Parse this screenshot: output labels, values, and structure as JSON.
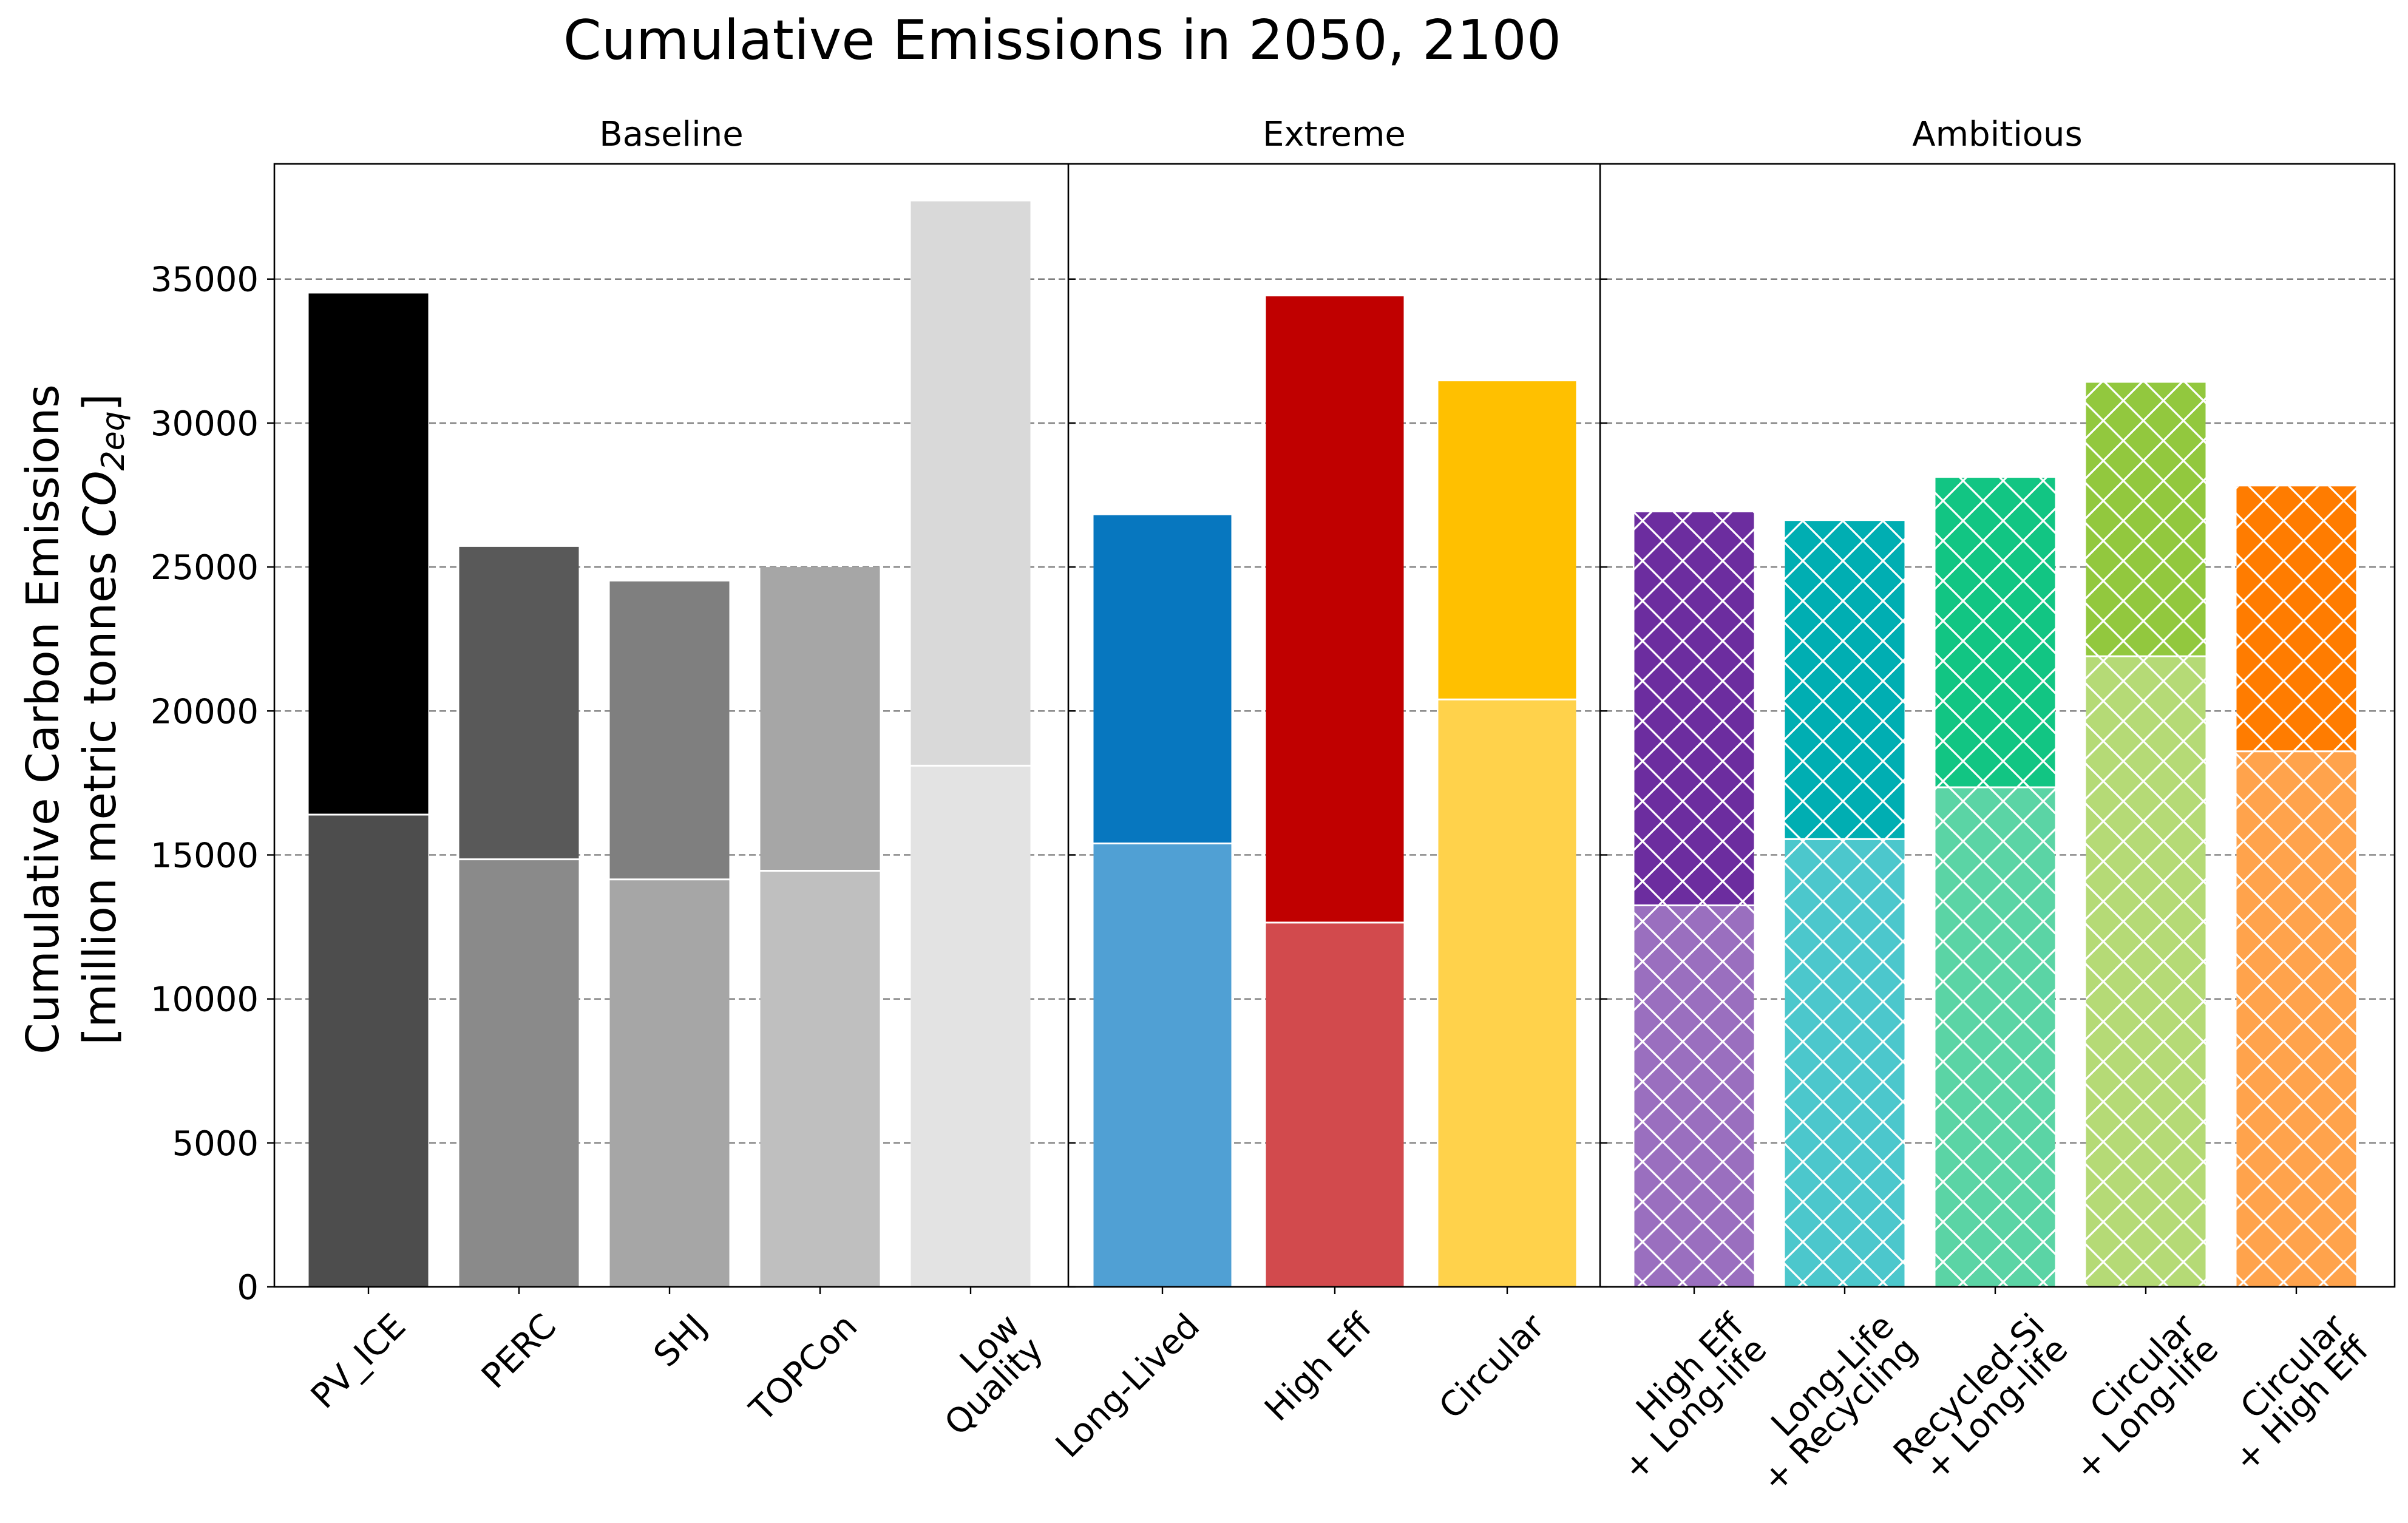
{
  "chart_data": {
    "type": "bar",
    "stacked": true,
    "title": "Cumulative Emissions in 2050, 2100",
    "ylabel_line1": "Cumulative Carbon Emissions",
    "ylabel_line2_prefix": "[million metric tonnes ",
    "ylabel_line2_symbol": "CO",
    "ylabel_line2_subscript": "2eq",
    "ylabel_line2_suffix": "]",
    "ylim": [
      0,
      39000
    ],
    "yticks": [
      0,
      5000,
      10000,
      15000,
      20000,
      25000,
      30000,
      35000
    ],
    "ytick_labels": [
      "0",
      "5000",
      "10000",
      "15000",
      "20000",
      "25000",
      "30000",
      "35000"
    ],
    "grid": "horizontal dashed",
    "stack_layers": [
      "2050",
      "2100"
    ],
    "panels": [
      {
        "name": "Baseline",
        "categories": [
          {
            "label": [
              "PV_ICE"
            ],
            "value_2050": 16400,
            "value_2100": 34500,
            "color_2050": "#4d4d4d",
            "color_2100": "#000000",
            "hatch": false
          },
          {
            "label": [
              "PERC"
            ],
            "value_2050": 14850,
            "value_2100": 25700,
            "color_2050": "#8a8a8a",
            "color_2100": "#595959",
            "hatch": false
          },
          {
            "label": [
              "SHJ"
            ],
            "value_2050": 14150,
            "value_2100": 24500,
            "color_2050": "#a6a6a6",
            "color_2100": "#7f7f7f",
            "hatch": false
          },
          {
            "label": [
              "TOPCon"
            ],
            "value_2050": 14450,
            "value_2100": 25000,
            "color_2050": "#bfbfbf",
            "color_2100": "#a6a6a6",
            "hatch": false
          },
          {
            "label": [
              "Low",
              "Quality"
            ],
            "value_2050": 18100,
            "value_2100": 37700,
            "color_2050": "#e3e3e3",
            "color_2100": "#d9d9d9",
            "hatch": false
          }
        ]
      },
      {
        "name": "Extreme",
        "categories": [
          {
            "label": [
              "Long-Lived"
            ],
            "value_2050": 15400,
            "value_2100": 26800,
            "color_2050": "#50a0d4",
            "color_2100": "#0777bf",
            "hatch": false
          },
          {
            "label": [
              "High Eff"
            ],
            "value_2050": 12650,
            "value_2100": 34400,
            "color_2050": "#d24a4d",
            "color_2100": "#c00000",
            "hatch": false
          },
          {
            "label": [
              "Circular"
            ],
            "value_2050": 20400,
            "value_2100": 31450,
            "color_2050": "#ffd24b",
            "color_2100": "#ffc000",
            "hatch": false
          }
        ]
      },
      {
        "name": "Ambitious",
        "categories": [
          {
            "label": [
              "High Eff",
              "+ Long-life"
            ],
            "value_2050": 13250,
            "value_2100": 26900,
            "color_2050": "#9a6fbf",
            "color_2100": "#6c2d9f",
            "hatch": true
          },
          {
            "label": [
              "Long-Life",
              "+ Recycling"
            ],
            "value_2050": 15550,
            "value_2100": 26600,
            "color_2050": "#4cc7cc",
            "color_2100": "#00aeb2",
            "hatch": true
          },
          {
            "label": [
              "Recycled-Si",
              "+ Long-life"
            ],
            "value_2050": 17350,
            "value_2100": 28100,
            "color_2050": "#5bd4a5",
            "color_2100": "#12c583",
            "hatch": true
          },
          {
            "label": [
              "Circular",
              "+ Long-life"
            ],
            "value_2050": 21900,
            "value_2100": 31400,
            "color_2050": "#b5da76",
            "color_2100": "#92c83e",
            "hatch": true
          },
          {
            "label": [
              "Circular",
              "+ High Eff"
            ],
            "value_2050": 18600,
            "value_2100": 27800,
            "color_2050": "#ffa34c",
            "color_2100": "#ff7c00",
            "hatch": true
          }
        ]
      }
    ]
  }
}
